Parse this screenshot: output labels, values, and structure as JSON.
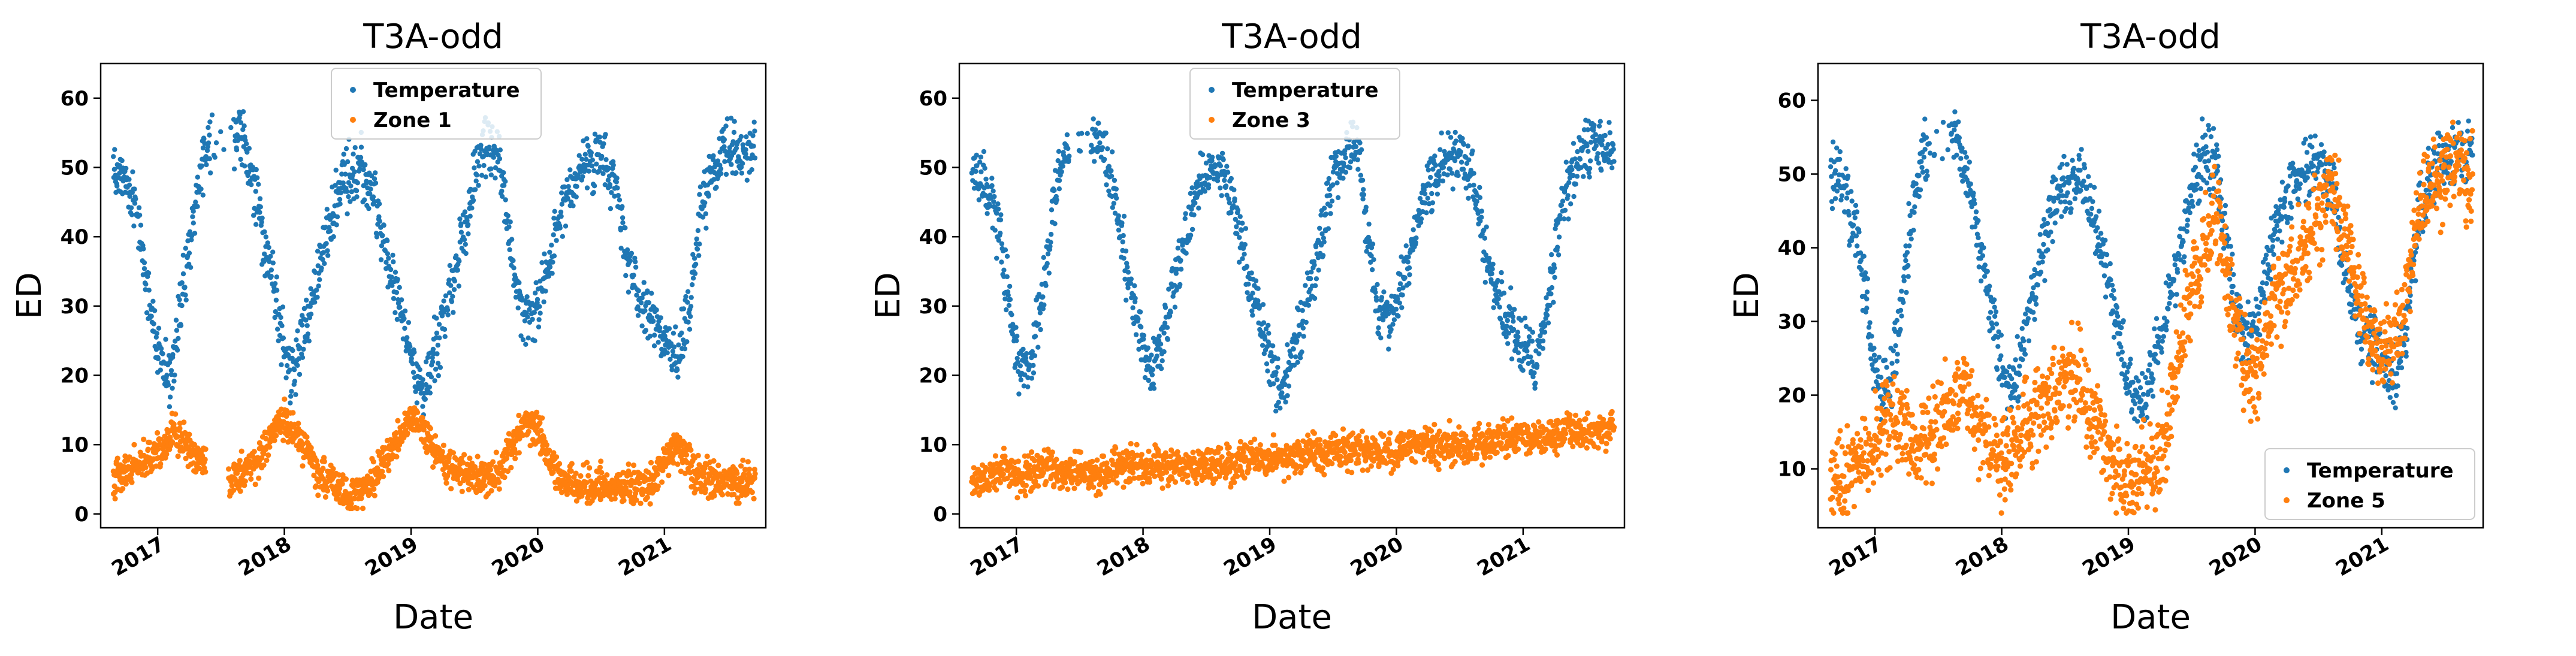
{
  "figure": {
    "colors": {
      "temperature": "#1f77b4",
      "zone": "#ff7f0e",
      "axes": "#000000",
      "legend_border": "#cccccc"
    }
  },
  "chart_data": [
    {
      "type": "scatter",
      "title": "T3A-odd",
      "xlabel": "Date",
      "ylabel": "ED",
      "xlim": [
        2016.55,
        2021.8
      ],
      "ylim": [
        -2,
        65
      ],
      "yticks": [
        0,
        10,
        20,
        30,
        40,
        50,
        60
      ],
      "xticks": [
        2017,
        2018,
        2019,
        2020,
        2021
      ],
      "xtick_labels": [
        "2017",
        "2018",
        "2019",
        "2020",
        "2021"
      ],
      "legend": {
        "location": "upper-center",
        "entries": [
          "Temperature",
          "Zone 1"
        ]
      },
      "series": [
        {
          "name": "Temperature",
          "color": "#1f77b4",
          "x": [
            2016.65,
            2016.75,
            2016.85,
            2016.95,
            2017.02,
            2017.1,
            2017.2,
            2017.3,
            2017.38,
            2017.65,
            2017.75,
            2017.85,
            2017.95,
            2018.05,
            2018.15,
            2018.3,
            2018.45,
            2018.6,
            2018.7,
            2018.8,
            2018.9,
            2019.0,
            2019.1,
            2019.2,
            2019.35,
            2019.5,
            2019.6,
            2019.7,
            2019.78,
            2019.85,
            2019.95,
            2020.05,
            2020.2,
            2020.35,
            2020.5,
            2020.6,
            2020.7,
            2020.8,
            2020.9,
            2021.0,
            2021.1,
            2021.2,
            2021.3,
            2021.45,
            2021.6,
            2021.72
          ],
          "y": [
            50,
            48,
            42,
            30,
            22,
            20,
            32,
            45,
            53,
            55,
            48,
            38,
            28,
            20,
            25,
            38,
            48,
            50,
            46,
            38,
            30,
            22,
            18,
            24,
            35,
            48,
            53,
            51,
            40,
            30,
            28,
            33,
            45,
            50,
            52,
            48,
            38,
            30,
            28,
            25,
            22,
            30,
            45,
            52,
            53,
            52
          ]
        },
        {
          "name": "Zone 1",
          "color": "#ff7f0e",
          "x": [
            2016.65,
            2016.75,
            2016.85,
            2016.95,
            2017.05,
            2017.15,
            2017.25,
            2017.35,
            2017.6,
            2017.7,
            2017.8,
            2017.9,
            2018.0,
            2018.1,
            2018.2,
            2018.3,
            2018.4,
            2018.5,
            2018.6,
            2018.7,
            2018.8,
            2018.9,
            2019.0,
            2019.1,
            2019.2,
            2019.3,
            2019.4,
            2019.5,
            2019.6,
            2019.7,
            2019.8,
            2019.9,
            2020.0,
            2020.1,
            2020.2,
            2020.3,
            2020.4,
            2020.5,
            2020.6,
            2020.7,
            2020.8,
            2020.9,
            2021.0,
            2021.1,
            2021.2,
            2021.3,
            2021.4,
            2021.5,
            2021.6,
            2021.7
          ],
          "y": [
            5,
            6,
            7,
            8,
            10,
            12,
            9,
            7,
            5,
            6,
            8,
            12,
            14,
            11,
            8,
            5,
            4,
            3,
            3,
            5,
            8,
            11,
            14,
            12,
            9,
            7,
            6,
            6,
            5,
            6,
            10,
            13,
            12,
            8,
            5,
            4,
            4,
            4,
            4,
            4,
            4,
            4,
            8,
            10,
            7,
            5,
            5,
            5,
            5,
            5
          ]
        }
      ]
    },
    {
      "type": "scatter",
      "title": "T3A-odd",
      "xlabel": "Date",
      "ylabel": "ED",
      "xlim": [
        2016.55,
        2021.8
      ],
      "ylim": [
        -2,
        65
      ],
      "yticks": [
        0,
        10,
        20,
        30,
        40,
        50,
        60
      ],
      "xticks": [
        2017,
        2018,
        2019,
        2020,
        2021
      ],
      "xtick_labels": [
        "2017",
        "2018",
        "2019",
        "2020",
        "2021"
      ],
      "legend": {
        "location": "upper-center",
        "entries": [
          "Temperature",
          "Zone 3"
        ]
      },
      "series": [
        {
          "name": "Temperature",
          "color": "#1f77b4",
          "x": [
            2016.65,
            2016.75,
            2016.85,
            2016.95,
            2017.02,
            2017.1,
            2017.2,
            2017.3,
            2017.38,
            2017.65,
            2017.75,
            2017.85,
            2017.95,
            2018.05,
            2018.15,
            2018.3,
            2018.45,
            2018.6,
            2018.7,
            2018.8,
            2018.9,
            2019.0,
            2019.1,
            2019.2,
            2019.35,
            2019.5,
            2019.6,
            2019.7,
            2019.78,
            2019.85,
            2019.95,
            2020.05,
            2020.2,
            2020.35,
            2020.5,
            2020.6,
            2020.7,
            2020.8,
            2020.9,
            2021.0,
            2021.1,
            2021.2,
            2021.3,
            2021.45,
            2021.6,
            2021.72
          ],
          "y": [
            50,
            48,
            42,
            30,
            22,
            20,
            32,
            45,
            53,
            55,
            48,
            38,
            28,
            20,
            25,
            38,
            48,
            50,
            46,
            38,
            30,
            22,
            18,
            24,
            35,
            48,
            53,
            51,
            40,
            30,
            28,
            33,
            45,
            50,
            52,
            48,
            38,
            30,
            28,
            25,
            22,
            30,
            45,
            52,
            53,
            52
          ]
        },
        {
          "name": "Zone 3",
          "color": "#ff7f0e",
          "x": [
            2016.65,
            2016.75,
            2016.85,
            2016.95,
            2017.05,
            2017.15,
            2017.25,
            2017.35,
            2017.6,
            2017.7,
            2017.8,
            2017.9,
            2018.0,
            2018.1,
            2018.2,
            2018.3,
            2018.4,
            2018.5,
            2018.6,
            2018.7,
            2018.8,
            2018.9,
            2019.0,
            2019.1,
            2019.2,
            2019.3,
            2019.4,
            2019.5,
            2019.6,
            2019.7,
            2019.8,
            2019.9,
            2020.0,
            2020.1,
            2020.2,
            2020.3,
            2020.4,
            2020.5,
            2020.6,
            2020.7,
            2020.8,
            2020.9,
            2021.0,
            2021.1,
            2021.2,
            2021.3,
            2021.4,
            2021.5,
            2021.6,
            2021.7
          ],
          "y": [
            5,
            5,
            6,
            6,
            5,
            6,
            7,
            6,
            6,
            6,
            7,
            7,
            7,
            7,
            7,
            7,
            7,
            7,
            7,
            7,
            8,
            8,
            8,
            8,
            8,
            9,
            9,
            9,
            9,
            9,
            9,
            9,
            9,
            10,
            10,
            10,
            10,
            10,
            10,
            10,
            11,
            11,
            11,
            11,
            11,
            12,
            12,
            12,
            12,
            12
          ]
        }
      ]
    },
    {
      "type": "scatter",
      "title": "T3A-odd",
      "xlabel": "Date",
      "ylabel": "ED",
      "xlim": [
        2016.55,
        2021.8
      ],
      "ylim": [
        2,
        65
      ],
      "yticks": [
        10,
        20,
        30,
        40,
        50,
        60
      ],
      "xticks": [
        2017,
        2018,
        2019,
        2020,
        2021
      ],
      "xtick_labels": [
        "2017",
        "2018",
        "2019",
        "2020",
        "2021"
      ],
      "legend": {
        "location": "lower-right",
        "entries": [
          "Temperature",
          "Zone 5"
        ]
      },
      "series": [
        {
          "name": "Temperature",
          "color": "#1f77b4",
          "x": [
            2016.65,
            2016.75,
            2016.85,
            2016.95,
            2017.02,
            2017.1,
            2017.2,
            2017.3,
            2017.38,
            2017.65,
            2017.75,
            2017.85,
            2017.95,
            2018.05,
            2018.15,
            2018.3,
            2018.45,
            2018.6,
            2018.7,
            2018.8,
            2018.9,
            2019.0,
            2019.1,
            2019.2,
            2019.35,
            2019.5,
            2019.6,
            2019.7,
            2019.78,
            2019.85,
            2019.95,
            2020.05,
            2020.2,
            2020.35,
            2020.5,
            2020.6,
            2020.7,
            2020.8,
            2020.9,
            2021.0,
            2021.1,
            2021.2,
            2021.3,
            2021.45,
            2021.6,
            2021.72
          ],
          "y": [
            50,
            48,
            42,
            30,
            22,
            20,
            32,
            45,
            53,
            55,
            48,
            38,
            28,
            20,
            25,
            38,
            48,
            50,
            46,
            38,
            30,
            22,
            18,
            24,
            35,
            48,
            53,
            51,
            40,
            30,
            28,
            33,
            45,
            50,
            52,
            48,
            38,
            30,
            28,
            25,
            22,
            30,
            45,
            52,
            53,
            52
          ]
        },
        {
          "name": "Zone 5",
          "color": "#ff7f0e",
          "x": [
            2016.65,
            2016.75,
            2016.85,
            2016.95,
            2017.05,
            2017.15,
            2017.25,
            2017.35,
            2017.6,
            2017.7,
            2017.8,
            2017.9,
            2018.0,
            2018.1,
            2018.2,
            2018.3,
            2018.4,
            2018.5,
            2018.6,
            2018.7,
            2018.8,
            2018.9,
            2019.0,
            2019.1,
            2019.2,
            2019.3,
            2019.4,
            2019.5,
            2019.6,
            2019.7,
            2019.8,
            2019.9,
            2020.0,
            2020.1,
            2020.2,
            2020.3,
            2020.4,
            2020.5,
            2020.6,
            2020.7,
            2020.8,
            2020.9,
            2021.0,
            2021.1,
            2021.2,
            2021.3,
            2021.4,
            2021.5,
            2021.6,
            2021.7
          ],
          "y": [
            10,
            9,
            10,
            12,
            15,
            18,
            14,
            12,
            18,
            22,
            17,
            13,
            10,
            12,
            16,
            18,
            20,
            22,
            22,
            18,
            14,
            10,
            8,
            9,
            10,
            15,
            25,
            35,
            40,
            45,
            33,
            25,
            22,
            30,
            35,
            38,
            40,
            44,
            48,
            42,
            35,
            28,
            25,
            28,
            35,
            45,
            48,
            50,
            52,
            50
          ]
        }
      ]
    }
  ]
}
